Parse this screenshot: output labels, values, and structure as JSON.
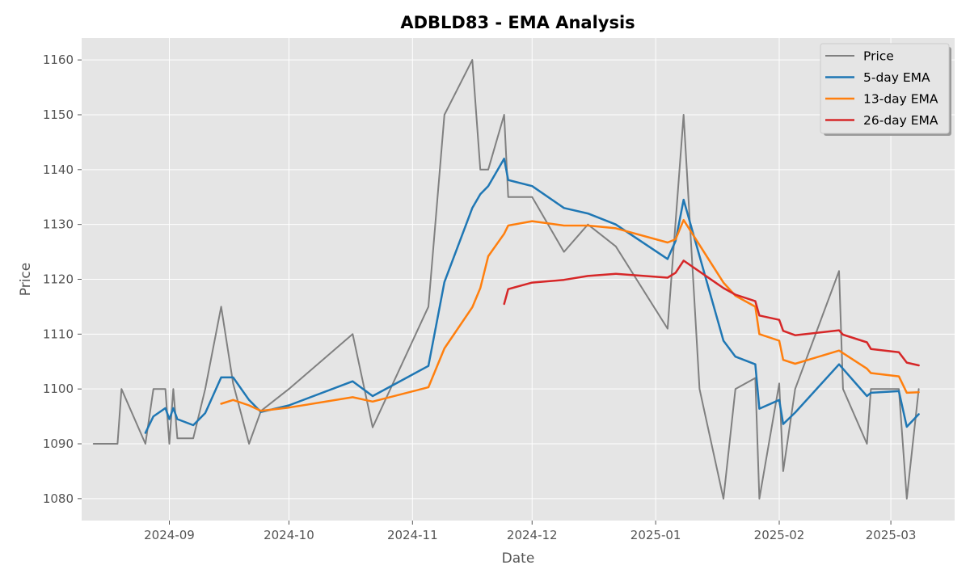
{
  "chart_data": {
    "type": "line",
    "title": "ADBLD83 - EMA Analysis",
    "xlabel": "Date",
    "ylabel": "Price",
    "xlim": [
      "2024-08-10",
      "2025-03-17"
    ],
    "ylim": [
      1076,
      1164
    ],
    "x_ticks": [
      {
        "date": "2024-09-01",
        "label": "2024-09"
      },
      {
        "date": "2024-10-01",
        "label": "2024-10"
      },
      {
        "date": "2024-11-01",
        "label": "2024-11"
      },
      {
        "date": "2024-12-01",
        "label": "2024-12"
      },
      {
        "date": "2025-01-01",
        "label": "2025-01"
      },
      {
        "date": "2025-02-01",
        "label": "2025-02"
      },
      {
        "date": "2025-03-01",
        "label": "2025-03"
      }
    ],
    "y_ticks": [
      1080,
      1090,
      1100,
      1110,
      1120,
      1130,
      1140,
      1150,
      1160
    ],
    "grid": true,
    "legend_position": "top-right",
    "background": "#e5e5e5",
    "series": [
      {
        "name": "Price",
        "color": "#808080",
        "x": [
          "2024-08-13",
          "2024-08-19",
          "2024-08-20",
          "2024-08-26",
          "2024-08-28",
          "2024-08-31",
          "2024-09-01",
          "2024-09-02",
          "2024-09-03",
          "2024-09-07",
          "2024-09-10",
          "2024-09-14",
          "2024-09-17",
          "2024-09-21",
          "2024-09-24",
          "2024-10-01",
          "2024-10-17",
          "2024-10-22",
          "2024-11-05",
          "2024-11-09",
          "2024-11-16",
          "2024-11-18",
          "2024-11-20",
          "2024-11-24",
          "2024-11-25",
          "2024-12-01",
          "2024-12-09",
          "2024-12-15",
          "2024-12-22",
          "2025-01-04",
          "2025-01-08",
          "2025-01-12",
          "2025-01-18",
          "2025-01-21",
          "2025-01-26",
          "2025-01-27",
          "2025-02-01",
          "2025-02-02",
          "2025-02-05",
          "2025-02-16",
          "2025-02-17",
          "2025-02-23",
          "2025-02-24",
          "2025-03-03",
          "2025-03-05",
          "2025-03-08"
        ],
        "values": [
          1090,
          1090,
          1100,
          1090,
          1100,
          1100,
          1090,
          1100,
          1091,
          1091,
          1100,
          1115,
          1101,
          1090,
          1096,
          1100,
          1110,
          1093,
          1115,
          1150,
          1160,
          1140,
          1140,
          1150,
          1135,
          1135,
          1125,
          1130,
          1126,
          1111,
          1150,
          1100,
          1080,
          1100,
          1102,
          1080,
          1101,
          1085,
          1100,
          1121.5,
          1100,
          1090,
          1100,
          1100,
          1080,
          1100
        ]
      },
      {
        "name": "5-day EMA",
        "color": "#1f77b4",
        "x": [
          "2024-08-26",
          "2024-08-28",
          "2024-08-31",
          "2024-09-01",
          "2024-09-02",
          "2024-09-03",
          "2024-09-07",
          "2024-09-10",
          "2024-09-14",
          "2024-09-17",
          "2024-09-21",
          "2024-09-24",
          "2024-10-01",
          "2024-10-17",
          "2024-10-22",
          "2024-11-05",
          "2024-11-09",
          "2024-11-16",
          "2024-11-18",
          "2024-11-20",
          "2024-11-24",
          "2024-11-25",
          "2024-12-01",
          "2024-12-09",
          "2024-12-15",
          "2024-12-22",
          "2025-01-04",
          "2025-01-06",
          "2025-01-08",
          "2025-01-18",
          "2025-01-21",
          "2025-01-26",
          "2025-01-27",
          "2025-02-01",
          "2025-02-02",
          "2025-02-05",
          "2025-02-16",
          "2025-02-23",
          "2025-02-24",
          "2025-03-03",
          "2025-03-05",
          "2025-03-08"
        ],
        "values": [
          1092,
          1095,
          1096.5,
          1094.5,
          1096.5,
          1094.5,
          1093.4,
          1095.6,
          1102.1,
          1102.1,
          1098,
          1095.8,
          1097,
          1101.4,
          1098.7,
          1104.2,
          1119.5,
          1133,
          1135.5,
          1137,
          1142,
          1138.1,
          1137,
          1133,
          1132,
          1130,
          1123.7,
          1127,
          1134.5,
          1108.8,
          1105.9,
          1104.5,
          1096.4,
          1098,
          1093.6,
          1095.7,
          1104.5,
          1098.7,
          1099.3,
          1099.6,
          1093.1,
          1095.4
        ]
      },
      {
        "name": "13-day EMA",
        "color": "#ff7f0e",
        "x": [
          "2024-09-14",
          "2024-09-17",
          "2024-09-21",
          "2024-09-24",
          "2024-10-01",
          "2024-10-17",
          "2024-10-22",
          "2024-11-05",
          "2024-11-09",
          "2024-11-16",
          "2024-11-18",
          "2024-11-20",
          "2024-11-24",
          "2024-11-25",
          "2024-12-01",
          "2024-12-09",
          "2024-12-15",
          "2024-12-22",
          "2025-01-04",
          "2025-01-06",
          "2025-01-08",
          "2025-01-18",
          "2025-01-21",
          "2025-01-26",
          "2025-01-27",
          "2025-02-01",
          "2025-02-02",
          "2025-02-05",
          "2025-02-16",
          "2025-02-23",
          "2025-02-24",
          "2025-03-03",
          "2025-03-05",
          "2025-03-08"
        ],
        "values": [
          1097.3,
          1098,
          1097,
          1096,
          1096.6,
          1098.5,
          1097.7,
          1100.3,
          1107.4,
          1114.9,
          1118.4,
          1124.2,
          1128.3,
          1129.8,
          1130.6,
          1129.8,
          1129.8,
          1129.3,
          1126.7,
          1127.3,
          1130.8,
          1119.4,
          1117,
          1115,
          1110,
          1108.8,
          1105.3,
          1104.6,
          1107,
          1103.7,
          1102.9,
          1102.3,
          1099.3,
          1099.4
        ]
      },
      {
        "name": "26-day EMA",
        "color": "#d62728",
        "x": [
          "2024-11-24",
          "2024-11-25",
          "2024-12-01",
          "2024-12-09",
          "2024-12-15",
          "2024-12-22",
          "2025-01-04",
          "2025-01-06",
          "2025-01-08",
          "2025-01-18",
          "2025-01-21",
          "2025-01-26",
          "2025-01-27",
          "2025-02-01",
          "2025-02-02",
          "2025-02-05",
          "2025-02-16",
          "2025-02-17",
          "2025-02-23",
          "2025-02-24",
          "2025-03-03",
          "2025-03-05",
          "2025-03-08"
        ],
        "values": [
          1115.5,
          1118.2,
          1119.4,
          1119.9,
          1120.6,
          1121,
          1120.3,
          1121.2,
          1123.4,
          1118.4,
          1117.2,
          1116,
          1113.4,
          1112.6,
          1110.6,
          1109.8,
          1110.7,
          1109.9,
          1108.5,
          1107.3,
          1106.7,
          1104.8,
          1104.3
        ]
      }
    ]
  }
}
